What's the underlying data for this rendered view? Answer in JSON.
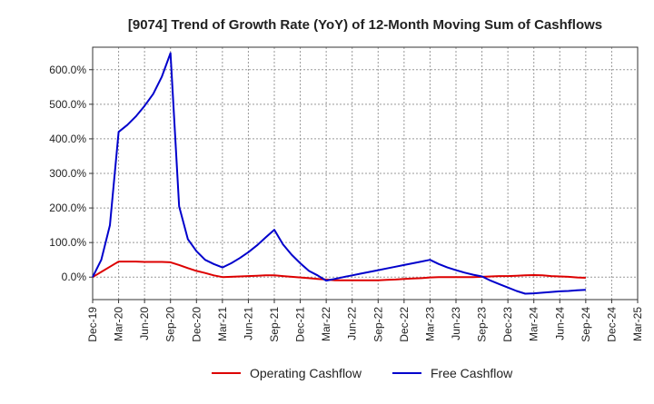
{
  "chart_data": {
    "type": "line",
    "title": "[9074]  Trend of Growth Rate (YoY) of 12-Month Moving Sum of Cashflows",
    "xlabel": "",
    "ylabel": "",
    "ylim": [
      -65,
      665
    ],
    "y_ticks": [
      0,
      100,
      200,
      300,
      400,
      500,
      600
    ],
    "y_tick_labels": [
      "0.0%",
      "100.0%",
      "200.0%",
      "300.0%",
      "400.0%",
      "500.0%",
      "600.0%"
    ],
    "x_tick_labels": [
      "Dec-19",
      "Mar-20",
      "Jun-20",
      "Sep-20",
      "Dec-20",
      "Mar-21",
      "Jun-21",
      "Sep-21",
      "Dec-21",
      "Mar-22",
      "Jun-22",
      "Sep-22",
      "Dec-22",
      "Mar-23",
      "Jun-23",
      "Sep-23",
      "Dec-23",
      "Mar-24",
      "Jun-24",
      "Sep-24",
      "Dec-24",
      "Mar-25"
    ],
    "x_months": [
      "Dec-19",
      "Jan-20",
      "Feb-20",
      "Mar-20",
      "Apr-20",
      "May-20",
      "Jun-20",
      "Jul-20",
      "Aug-20",
      "Sep-20",
      "Oct-20",
      "Nov-20",
      "Dec-20",
      "Jan-21",
      "Feb-21",
      "Mar-21",
      "Apr-21",
      "May-21",
      "Jun-21",
      "Jul-21",
      "Aug-21",
      "Sep-21",
      "Oct-21",
      "Nov-21",
      "Dec-21",
      "Jan-22",
      "Feb-22",
      "Mar-22",
      "Apr-22",
      "May-22",
      "Jun-22",
      "Jul-22",
      "Aug-22",
      "Sep-22",
      "Oct-22",
      "Nov-22",
      "Dec-22",
      "Jan-23",
      "Feb-23",
      "Mar-23",
      "Apr-23",
      "May-23",
      "Jun-23",
      "Jul-23",
      "Aug-23",
      "Sep-23",
      "Oct-23",
      "Nov-23",
      "Dec-23",
      "Jan-24",
      "Feb-24",
      "Mar-24",
      "Apr-24",
      "May-24",
      "Jun-24",
      "Jul-24",
      "Aug-24",
      "Sep-24",
      "Oct-24",
      "Nov-24",
      "Dec-24",
      "Jan-25",
      "Feb-25",
      "Mar-25"
    ],
    "grid": true,
    "legend_position": "bottom",
    "series": [
      {
        "name": "Operating Cashflow",
        "color": "#dd0000",
        "values": [
          0,
          15,
          30,
          45,
          45,
          45,
          44,
          44,
          44,
          43,
          35,
          26,
          18,
          12,
          5,
          0,
          1,
          2,
          3,
          4,
          5,
          5,
          3,
          1,
          -1,
          -3,
          -5,
          -7,
          -9,
          -9,
          -9,
          -9,
          -9,
          -9,
          -8,
          -7,
          -5,
          -4,
          -3,
          -1,
          0,
          0,
          0,
          0,
          0,
          1,
          2,
          3,
          3,
          4,
          5,
          6,
          5,
          3,
          2,
          1,
          -1,
          -2,
          null,
          null,
          null,
          null,
          null,
          null
        ]
      },
      {
        "name": "Free Cashflow",
        "color": "#0000cc",
        "values": [
          0,
          50,
          150,
          420,
          440,
          465,
          495,
          530,
          580,
          648,
          205,
          110,
          75,
          50,
          38,
          28,
          40,
          55,
          72,
          92,
          115,
          137,
          95,
          65,
          40,
          18,
          5,
          -10,
          -5,
          0,
          5,
          10,
          15,
          20,
          25,
          30,
          35,
          40,
          45,
          50,
          38,
          28,
          20,
          13,
          7,
          2,
          -10,
          -20,
          -30,
          -40,
          -48,
          -47,
          -45,
          -43,
          -41,
          -40,
          -38,
          -37,
          null,
          null,
          null,
          null,
          null,
          null
        ]
      }
    ]
  }
}
